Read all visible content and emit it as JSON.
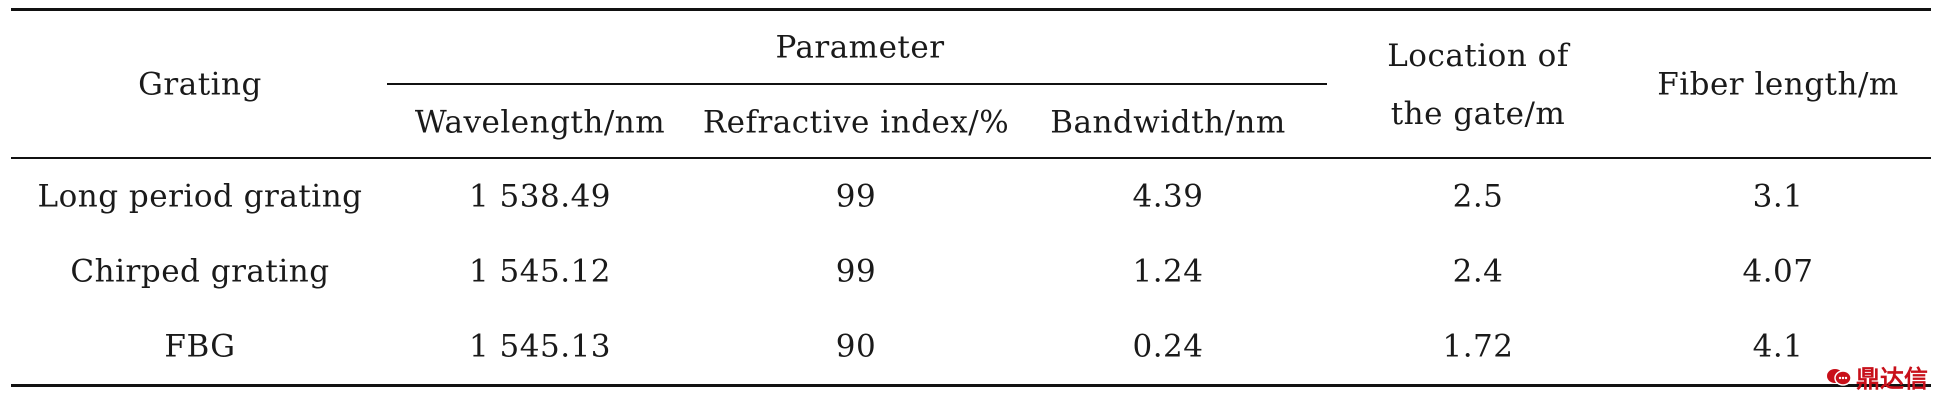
{
  "table": {
    "header": {
      "grating": "Grating",
      "parameter": "Parameter",
      "wavelength": "Wavelength/nm",
      "refractive_index": "Refractive index/%",
      "bandwidth": "Bandwidth/nm",
      "location": "Location of the gate/m",
      "fiber_length": "Fiber length/m"
    },
    "rows": [
      {
        "grating": "Long period grating",
        "wavelength": "1 538.49",
        "refractive_index": "99",
        "bandwidth": "4.39",
        "location": "2.5",
        "fiber_length": "3.1"
      },
      {
        "grating": "Chirped grating",
        "wavelength": "1 545.12",
        "refractive_index": "99",
        "bandwidth": "1.24",
        "location": "2.4",
        "fiber_length": "4.07"
      },
      {
        "grating": "FBG",
        "wavelength": "1 545.13",
        "refractive_index": "90",
        "bandwidth": "0.24",
        "location": "1.72",
        "fiber_length": "4.1"
      }
    ]
  },
  "watermark": {
    "text": "鼎达信",
    "color": "#c8101a",
    "icon": "chat-bubbles-icon"
  }
}
